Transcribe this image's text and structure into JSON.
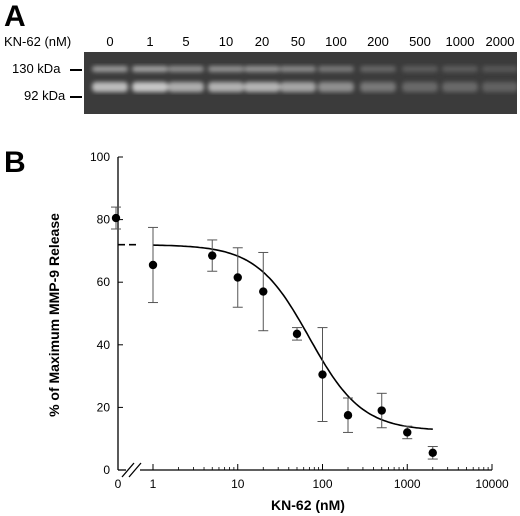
{
  "panel_a": {
    "letter": "A",
    "header": "KN-62 (nM)",
    "lanes": [
      "0",
      "1",
      "5",
      "10",
      "20",
      "50",
      "100",
      "200",
      "500",
      "1000",
      "2000"
    ],
    "lane_intensity": [
      0.85,
      0.92,
      0.75,
      0.78,
      0.8,
      0.7,
      0.55,
      0.4,
      0.3,
      0.3,
      0.25
    ],
    "markers": [
      "130 kDa",
      "92 kDa"
    ]
  },
  "chart_data": {
    "type": "scatter",
    "letter": "B",
    "xlabel": "KN-62 (nM)",
    "ylabel": "% of Maximum MMP-9 Release",
    "xscale": "log",
    "xlim": [
      1,
      10000
    ],
    "ylim": [
      0,
      100
    ],
    "x_ticks": [
      "0",
      "1",
      "10",
      "100",
      "1000",
      "10000"
    ],
    "y_ticks": [
      "0",
      "20",
      "40",
      "60",
      "80",
      "100"
    ],
    "points": [
      {
        "x": 0,
        "y": 80.5,
        "err": 3.5
      },
      {
        "x": 1,
        "y": 65.5,
        "err": 12
      },
      {
        "x": 5,
        "y": 68.5,
        "err": 5
      },
      {
        "x": 10,
        "y": 61.5,
        "err": 9.5
      },
      {
        "x": 20,
        "y": 57,
        "err": 12.5
      },
      {
        "x": 50,
        "y": 43.5,
        "err": 2
      },
      {
        "x": 100,
        "y": 30.5,
        "err": 15
      },
      {
        "x": 200,
        "y": 17.5,
        "err": 5.5
      },
      {
        "x": 500,
        "y": 19,
        "err": 5.5
      },
      {
        "x": 1000,
        "y": 12,
        "err": 2
      },
      {
        "x": 2000,
        "y": 5.5,
        "err": 2
      }
    ],
    "fit_curve": {
      "top": 72,
      "bottom": 12.5,
      "ec50": 70,
      "hill": 1.4,
      "x_start": 1,
      "x_end": 2000
    },
    "axis_break": true,
    "grid": false,
    "legend": "none"
  }
}
